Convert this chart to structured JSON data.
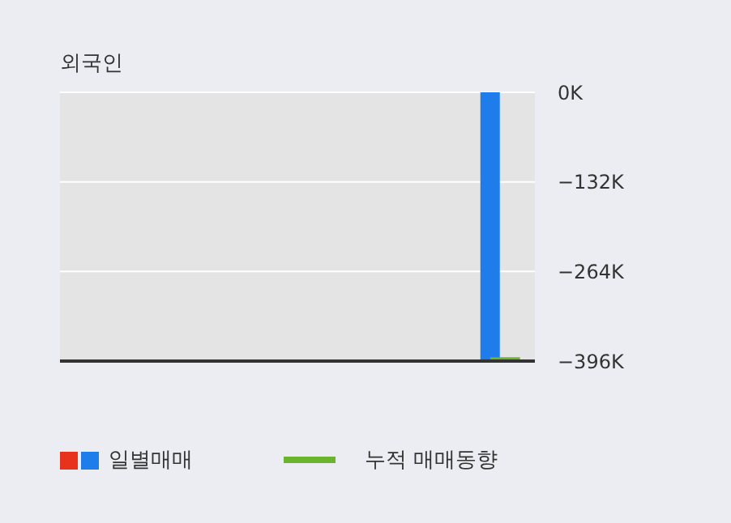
{
  "chart_data": {
    "type": "bar",
    "title": "외국인",
    "categories": [
      null,
      null,
      null,
      null,
      null,
      null,
      null,
      null,
      null,
      null,
      null,
      null,
      null,
      null,
      null,
      null
    ],
    "series": [
      {
        "name": "일별매매",
        "color": "#1e7ceb",
        "colors": [
          "#e8321e",
          "#e8321e",
          "#e8321e",
          "#e8321e",
          "#e8321e",
          "#e8321e",
          "#e8321e",
          "#e8321e",
          "#e8321e",
          "#e8321e",
          "#e8321e",
          "#e8321e",
          "#e8321e",
          "#e8321e",
          "#1e7ceb",
          "#e8321e"
        ],
        "values": [
          null,
          null,
          null,
          null,
          null,
          null,
          null,
          null,
          null,
          null,
          null,
          null,
          null,
          null,
          -394000,
          null
        ]
      },
      {
        "name": "누적 매매동향",
        "type": "line",
        "color": "#6ab42e",
        "values": [
          null,
          null,
          null,
          null,
          null,
          null,
          null,
          null,
          null,
          null,
          null,
          null,
          null,
          null,
          -394000,
          -394000
        ]
      }
    ],
    "ylim": [
      -396000,
      0
    ],
    "yticks": [
      {
        "value": 0,
        "label": "0K"
      },
      {
        "value": -132000,
        "label": "−132K"
      },
      {
        "value": -264000,
        "label": "−264K"
      },
      {
        "value": -396000,
        "label": "−396K"
      }
    ],
    "grid": "y",
    "legend": "bottom",
    "tick_labels": "y",
    "marker": "none"
  }
}
